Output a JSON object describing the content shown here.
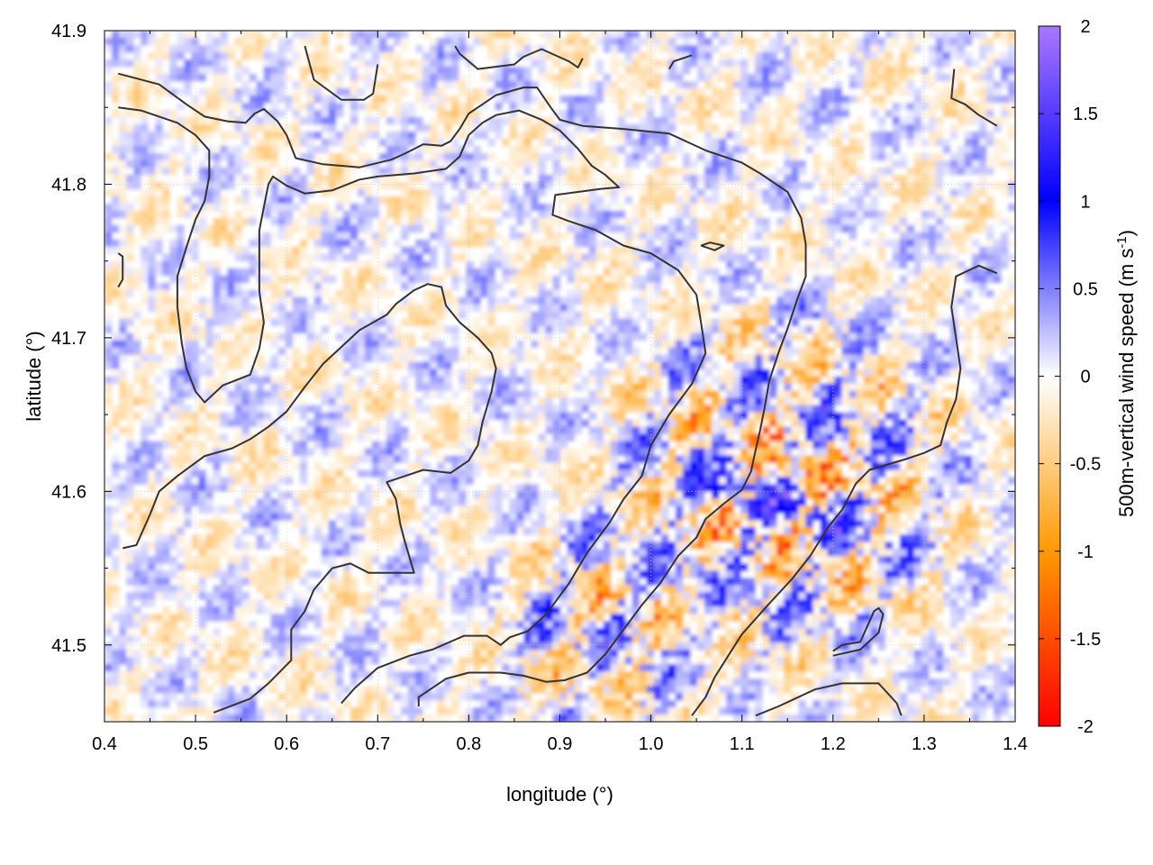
{
  "chart_data": {
    "type": "heatmap",
    "title": "",
    "xlabel": "longitude (°)",
    "ylabel": "latitude (°)",
    "colorbar_label_main": "500m-vertical wind speed (m s",
    "colorbar_label_sup": "-1",
    "colorbar_label_end": ")",
    "xlim": [
      0.4,
      1.4
    ],
    "ylim": [
      1.45,
      41.9
    ],
    "lat_range": [
      41.45,
      41.9
    ],
    "x_ticks": [
      0.4,
      0.5,
      0.6,
      0.7,
      0.8,
      0.9,
      1.0,
      1.1,
      1.2,
      1.3,
      1.4
    ],
    "x_tick_labels": [
      "0.4",
      "0.5",
      "0.6",
      "0.7",
      "0.8",
      "0.9",
      "1.0",
      "1.1",
      "1.2",
      "1.3",
      "1.4"
    ],
    "y_ticks": [
      41.5,
      41.6,
      41.7,
      41.8,
      41.9
    ],
    "y_tick_labels": [
      "41.5",
      "41.6",
      "41.7",
      "41.8",
      "41.9"
    ],
    "colorbar": {
      "range": [
        -2,
        2
      ],
      "ticks": [
        2,
        1.5,
        1,
        0.5,
        0,
        -0.5,
        -1,
        -1.5,
        -2
      ],
      "tick_labels": [
        "2",
        "1.5",
        "1",
        "0.5",
        "0",
        "-0.5",
        "-1",
        "-1.5",
        "-2"
      ],
      "colors": [
        {
          "value": -2,
          "color": "#ff0000"
        },
        {
          "value": -1,
          "color": "#ff9900"
        },
        {
          "value": 0,
          "color": "#ffffff"
        },
        {
          "value": 1,
          "color": "#0000ff"
        },
        {
          "value": 2,
          "color": "#aa77ff"
        }
      ]
    },
    "grid": true,
    "contour_color": "#333333",
    "contours": [
      [
        [
          0.415,
          41.872
        ],
        [
          0.46,
          41.865
        ],
        [
          0.49,
          41.852
        ],
        [
          0.51,
          41.844
        ],
        [
          0.535,
          41.841
        ],
        [
          0.555,
          41.84
        ],
        [
          0.565,
          41.846
        ],
        [
          0.575,
          41.849
        ],
        [
          0.59,
          41.841
        ],
        [
          0.6,
          41.832
        ],
        [
          0.61,
          41.817
        ],
        [
          0.64,
          41.813
        ],
        [
          0.66,
          41.812
        ],
        [
          0.68,
          41.811
        ],
        [
          0.715,
          41.816
        ],
        [
          0.73,
          41.82
        ],
        [
          0.75,
          41.826
        ],
        [
          0.77,
          41.825
        ],
        [
          0.78,
          41.828
        ],
        [
          0.79,
          41.836
        ],
        [
          0.8,
          41.846
        ],
        [
          0.815,
          41.852
        ],
        [
          0.83,
          41.858
        ],
        [
          0.86,
          41.863
        ],
        [
          0.875,
          41.863
        ],
        [
          0.89,
          41.85
        ],
        [
          0.9,
          41.842
        ],
        [
          0.925,
          41.838
        ],
        [
          0.97,
          41.836
        ],
        [
          1.02,
          41.833
        ],
        [
          1.06,
          41.822
        ],
        [
          1.1,
          41.814
        ],
        [
          1.12,
          41.807
        ],
        [
          1.15,
          41.795
        ],
        [
          1.165,
          41.778
        ],
        [
          1.17,
          41.761
        ],
        [
          1.17,
          41.74
        ],
        [
          1.16,
          41.724
        ],
        [
          1.15,
          41.706
        ],
        [
          1.14,
          41.69
        ],
        [
          1.13,
          41.672
        ],
        [
          1.125,
          41.655
        ],
        [
          1.12,
          41.64
        ],
        [
          1.115,
          41.627
        ],
        [
          1.11,
          41.613
        ],
        [
          1.1,
          41.601
        ],
        [
          1.08,
          41.592
        ],
        [
          1.06,
          41.582
        ],
        [
          1.05,
          41.57
        ],
        [
          1.03,
          41.558
        ],
        [
          1.01,
          41.54
        ],
        [
          0.99,
          41.526
        ],
        [
          0.97,
          41.51
        ],
        [
          0.95,
          41.494
        ],
        [
          0.93,
          41.482
        ],
        [
          0.905,
          41.477
        ],
        [
          0.885,
          41.476
        ],
        [
          0.86,
          41.48
        ],
        [
          0.835,
          41.482
        ],
        [
          0.8,
          41.482
        ],
        [
          0.775,
          41.478
        ],
        [
          0.745,
          41.466
        ],
        [
          0.745,
          41.46
        ]
      ],
      [
        [
          0.415,
          41.85
        ],
        [
          0.44,
          41.848
        ],
        [
          0.46,
          41.844
        ],
        [
          0.48,
          41.84
        ],
        [
          0.5,
          41.832
        ],
        [
          0.515,
          41.822
        ],
        [
          0.515,
          41.805
        ],
        [
          0.51,
          41.789
        ],
        [
          0.5,
          41.777
        ],
        [
          0.49,
          41.759
        ],
        [
          0.48,
          41.74
        ],
        [
          0.48,
          41.72
        ],
        [
          0.485,
          41.696
        ],
        [
          0.49,
          41.68
        ],
        [
          0.5,
          41.665
        ],
        [
          0.51,
          41.658
        ],
        [
          0.53,
          41.669
        ],
        [
          0.56,
          41.676
        ],
        [
          0.57,
          41.693
        ],
        [
          0.575,
          41.71
        ],
        [
          0.57,
          41.73
        ],
        [
          0.57,
          41.752
        ],
        [
          0.57,
          41.77
        ],
        [
          0.575,
          41.785
        ],
        [
          0.58,
          41.8
        ],
        [
          0.585,
          41.805
        ],
        [
          0.6,
          41.799
        ],
        [
          0.62,
          41.794
        ],
        [
          0.65,
          41.796
        ],
        [
          0.68,
          41.803
        ],
        [
          0.7,
          41.805
        ],
        [
          0.74,
          41.807
        ],
        [
          0.775,
          41.81
        ],
        [
          0.79,
          41.818
        ],
        [
          0.8,
          41.832
        ],
        [
          0.815,
          41.84
        ],
        [
          0.83,
          41.845
        ],
        [
          0.855,
          41.848
        ],
        [
          0.88,
          41.842
        ],
        [
          0.9,
          41.835
        ],
        [
          0.92,
          41.823
        ],
        [
          0.935,
          41.812
        ],
        [
          0.95,
          41.806
        ],
        [
          0.965,
          41.798
        ],
        [
          0.945,
          41.797
        ],
        [
          0.92,
          41.795
        ],
        [
          0.895,
          41.793
        ],
        [
          0.892,
          41.78
        ],
        [
          0.91,
          41.776
        ],
        [
          0.94,
          41.77
        ],
        [
          0.97,
          41.76
        ],
        [
          1.0,
          41.755
        ],
        [
          1.03,
          41.744
        ],
        [
          1.05,
          41.728
        ],
        [
          1.055,
          41.71
        ],
        [
          1.06,
          41.69
        ],
        [
          1.045,
          41.67
        ],
        [
          1.02,
          41.65
        ],
        [
          1.0,
          41.63
        ],
        [
          0.99,
          41.61
        ],
        [
          0.97,
          41.595
        ],
        [
          0.955,
          41.58
        ],
        [
          0.93,
          41.56
        ],
        [
          0.91,
          41.54
        ],
        [
          0.885,
          41.52
        ],
        [
          0.865,
          41.509
        ],
        [
          0.845,
          41.505
        ],
        [
          0.835,
          41.5
        ],
        [
          0.82,
          41.506
        ],
        [
          0.795,
          41.506
        ],
        [
          0.76,
          41.497
        ],
        [
          0.735,
          41.493
        ],
        [
          0.7,
          41.485
        ],
        [
          0.675,
          41.472
        ],
        [
          0.66,
          41.462
        ]
      ],
      [
        [
          0.42,
          41.563
        ],
        [
          0.435,
          41.565
        ],
        [
          0.45,
          41.585
        ],
        [
          0.46,
          41.6
        ],
        [
          0.48,
          41.61
        ],
        [
          0.51,
          41.623
        ],
        [
          0.54,
          41.628
        ],
        [
          0.56,
          41.634
        ],
        [
          0.58,
          41.642
        ],
        [
          0.6,
          41.652
        ],
        [
          0.62,
          41.668
        ],
        [
          0.64,
          41.683
        ],
        [
          0.66,
          41.694
        ],
        [
          0.68,
          41.705
        ],
        [
          0.71,
          41.715
        ],
        [
          0.72,
          41.722
        ],
        [
          0.74,
          41.731
        ],
        [
          0.755,
          41.735
        ],
        [
          0.77,
          41.733
        ],
        [
          0.775,
          41.721
        ],
        [
          0.79,
          41.71
        ],
        [
          0.81,
          41.7
        ],
        [
          0.825,
          41.69
        ],
        [
          0.83,
          41.68
        ],
        [
          0.825,
          41.665
        ],
        [
          0.82,
          41.655
        ],
        [
          0.815,
          41.645
        ],
        [
          0.81,
          41.63
        ],
        [
          0.8,
          41.62
        ],
        [
          0.78,
          41.612
        ],
        [
          0.75,
          41.614
        ],
        [
          0.73,
          41.61
        ],
        [
          0.71,
          41.606
        ],
        [
          0.72,
          41.595
        ],
        [
          0.725,
          41.578
        ],
        [
          0.73,
          41.567
        ],
        [
          0.74,
          41.547
        ],
        [
          0.69,
          41.547
        ],
        [
          0.67,
          41.553
        ],
        [
          0.65,
          41.55
        ],
        [
          0.63,
          41.536
        ],
        [
          0.62,
          41.522
        ],
        [
          0.605,
          41.51
        ],
        [
          0.605,
          41.49
        ],
        [
          0.58,
          41.475
        ],
        [
          0.56,
          41.465
        ],
        [
          0.52,
          41.456
        ]
      ],
      [
        [
          0.415,
          41.755
        ],
        [
          0.42,
          41.753
        ],
        [
          0.42,
          41.738
        ],
        [
          0.415,
          41.733
        ]
      ],
      [
        [
          0.62,
          41.89
        ],
        [
          0.63,
          41.868
        ],
        [
          0.66,
          41.855
        ],
        [
          0.685,
          41.855
        ],
        [
          0.695,
          41.859
        ],
        [
          0.7,
          41.878
        ]
      ],
      [
        [
          0.785,
          41.89
        ],
        [
          0.79,
          41.885
        ],
        [
          0.81,
          41.875
        ],
        [
          0.85,
          41.878
        ],
        [
          0.86,
          41.883
        ],
        [
          0.88,
          41.888
        ],
        [
          0.91,
          41.88
        ],
        [
          0.92,
          41.876
        ],
        [
          0.925,
          41.882
        ]
      ],
      [
        [
          1.02,
          41.875
        ],
        [
          1.025,
          41.88
        ],
        [
          1.045,
          41.884
        ]
      ],
      [
        [
          1.333,
          41.875
        ],
        [
          1.33,
          41.856
        ],
        [
          1.345,
          41.852
        ],
        [
          1.36,
          41.845
        ],
        [
          1.38,
          41.838
        ]
      ],
      [
        [
          1.055,
          41.76
        ],
        [
          1.065,
          41.762
        ],
        [
          1.08,
          41.76
        ],
        [
          1.07,
          41.757
        ],
        [
          1.055,
          41.76
        ]
      ],
      [
        [
          1.38,
          41.742
        ],
        [
          1.36,
          41.747
        ],
        [
          1.335,
          41.74
        ],
        [
          1.33,
          41.72
        ],
        [
          1.335,
          41.7
        ],
        [
          1.34,
          41.68
        ],
        [
          1.335,
          41.66
        ],
        [
          1.325,
          41.645
        ],
        [
          1.318,
          41.63
        ],
        [
          1.3,
          41.625
        ],
        [
          1.28,
          41.621
        ],
        [
          1.24,
          41.614
        ],
        [
          1.225,
          41.605
        ],
        [
          1.21,
          41.588
        ],
        [
          1.195,
          41.577
        ],
        [
          1.175,
          41.558
        ],
        [
          1.155,
          41.543
        ],
        [
          1.13,
          41.527
        ],
        [
          1.1,
          41.507
        ],
        [
          1.085,
          41.493
        ],
        [
          1.07,
          41.479
        ],
        [
          1.06,
          41.466
        ],
        [
          1.045,
          41.454
        ]
      ],
      [
        [
          1.2,
          41.493
        ],
        [
          1.23,
          41.497
        ],
        [
          1.25,
          41.508
        ],
        [
          1.255,
          41.52
        ],
        [
          1.25,
          41.524
        ],
        [
          1.245,
          41.522
        ],
        [
          1.23,
          41.502
        ],
        [
          1.21,
          41.5
        ],
        [
          1.2,
          41.496
        ]
      ],
      [
        [
          1.115,
          41.454
        ],
        [
          1.14,
          41.46
        ],
        [
          1.18,
          41.471
        ],
        [
          1.21,
          41.475
        ],
        [
          1.25,
          41.475
        ],
        [
          1.27,
          41.462
        ],
        [
          1.275,
          41.454
        ]
      ]
    ]
  }
}
